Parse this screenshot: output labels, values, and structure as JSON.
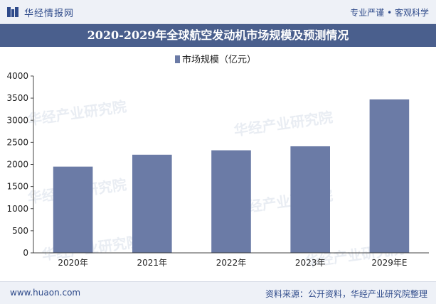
{
  "header": {
    "brand": "华经情报网",
    "slogan": "专业严谨 • 客观科学"
  },
  "title": "2020-2029年全球航空发动机市场规模及预测情况",
  "chart_data": {
    "type": "bar",
    "categories": [
      "2020年",
      "2021年",
      "2022年",
      "2023年",
      "2029年E"
    ],
    "series": [
      {
        "name": "市场规模（亿元）",
        "values": [
          1950,
          2220,
          2320,
          2410,
          3470
        ]
      }
    ],
    "ylim": [
      0,
      4000
    ],
    "yticks": [
      0,
      500,
      1000,
      1500,
      2000,
      2500,
      3000,
      3500,
      4000
    ],
    "legend_position": "top",
    "grid": false,
    "bar_color": "#6b7ba6"
  },
  "watermark": "华经产业研究院",
  "footer": {
    "url": "www.huaon.com",
    "source": "资料来源：公开资料，华经产业研究院整理"
  }
}
